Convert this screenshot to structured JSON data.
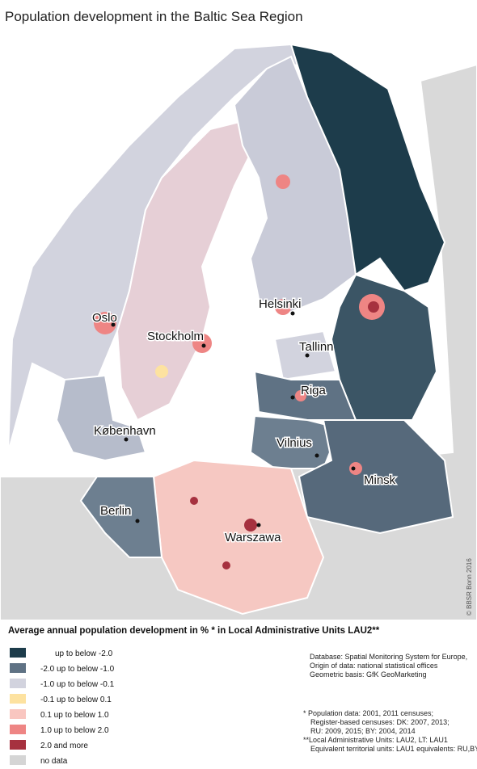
{
  "title": "Population development  in the Baltic Sea Region",
  "cities": [
    {
      "label": "Oslo"
    },
    {
      "label": "Stockholm"
    },
    {
      "label": "Helsinki"
    },
    {
      "label": "Tallinn"
    },
    {
      "label": "Riga"
    },
    {
      "label": "København"
    },
    {
      "label": "Vilnius"
    },
    {
      "label": "Minsk"
    },
    {
      "label": "Berlin"
    },
    {
      "label": "Warszawa"
    }
  ],
  "copyright": "© BBSR Bonn 2016",
  "legend": {
    "title": "Average annual population development in % * in Local Administrative Units LAU2**",
    "items": [
      {
        "label": "up to below -2.0",
        "color": "#1d3c4b"
      },
      {
        "label": "-2.0 up to below -1.0",
        "color": "#5f7284"
      },
      {
        "label": "-1.0 up to below -0.1",
        "color": "#d2d3de"
      },
      {
        "label": "-0.1 up to below  0.1",
        "color": "#fde2a0"
      },
      {
        "label": "0.1 up to below  1.0",
        "color": "#f9c6c0"
      },
      {
        "label": "1.0 up to below  2.0",
        "color": "#ee8584"
      },
      {
        "label": "2.0 and more",
        "color": "#a6313f"
      },
      {
        "label": "no data",
        "color": "#d5d5d5"
      }
    ]
  },
  "sources": [
    "Database: Spatial Monitoring System for Europe,",
    "Origin of data: national statistical offices",
    "Geometric basis: GfK GeoMarketing"
  ],
  "footnotes": [
    "* Population data: 2001, 2011 censuses;",
    "Register-based censuses: DK: 2007, 2013;",
    "RU: 2009, 2015; BY: 2004, 2014",
    "**Local Administrative Units: LAU2, LT: LAU1",
    "Equivalent territorial units: LAU1 equivalents: RU,BY"
  ]
}
